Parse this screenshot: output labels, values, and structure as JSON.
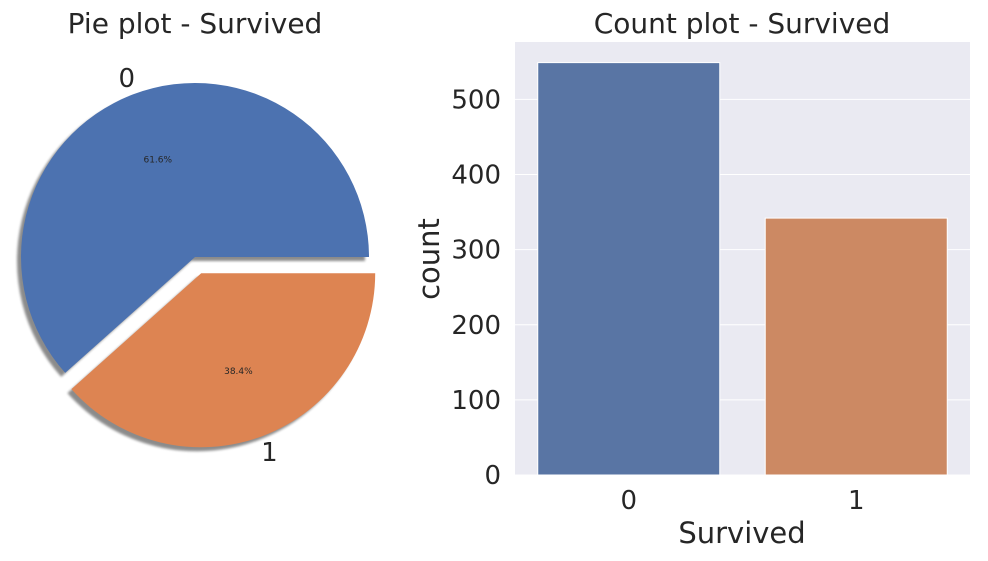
{
  "chart_data": [
    {
      "type": "pie",
      "title": "Pie plot - Survived",
      "labels": [
        "0",
        "1"
      ],
      "values": [
        61.6,
        38.4
      ],
      "autopct_labels": [
        "61.6%",
        "38.4%"
      ],
      "explode": [
        0,
        0.1
      ],
      "shadow": true,
      "colors": [
        "#4c72b0",
        "#dd8452"
      ]
    },
    {
      "type": "bar",
      "title": "Count plot - Survived",
      "categories": [
        "0",
        "1"
      ],
      "values": [
        549,
        342
      ],
      "xlabel": "Survived",
      "ylabel": "count",
      "ylim": [
        0,
        576.45
      ],
      "yticks": [
        "0",
        "100",
        "200",
        "300",
        "400",
        "500"
      ],
      "grid": true,
      "colors": [
        "#5975a4",
        "#cc8963"
      ],
      "background": "#eaeaf2"
    }
  ]
}
